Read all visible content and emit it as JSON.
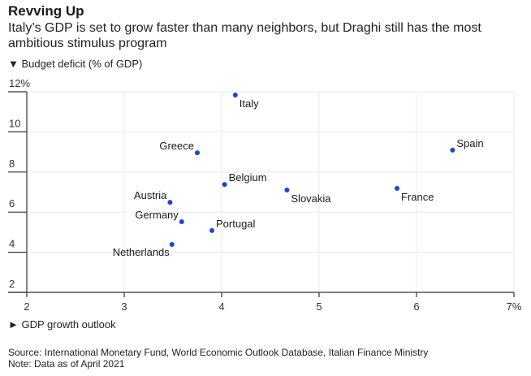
{
  "chart_data": {
    "type": "scatter",
    "title": "Revving Up",
    "subtitle": "Italy’s GDP is set to grow faster than many neighbors, but Draghi still has the most ambitious stimulus program",
    "ylabel": "▼ Budget deficit (% of GDP)",
    "xlabel": "► GDP growth outlook",
    "xlim": [
      2,
      7
    ],
    "ylim": [
      2,
      12
    ],
    "x_ticks": [
      {
        "value": 2,
        "label": "2"
      },
      {
        "value": 3,
        "label": "3"
      },
      {
        "value": 4,
        "label": "4"
      },
      {
        "value": 5,
        "label": "5"
      },
      {
        "value": 6,
        "label": "6"
      },
      {
        "value": 7,
        "label": "7%"
      }
    ],
    "y_ticks": [
      {
        "value": 2,
        "label": "2"
      },
      {
        "value": 4,
        "label": "4"
      },
      {
        "value": 6,
        "label": "6"
      },
      {
        "value": 8,
        "label": "8"
      },
      {
        "value": 10,
        "label": "10"
      },
      {
        "value": 12,
        "label": "12%"
      }
    ],
    "grid": true,
    "point_color": "#1a47d6",
    "points": [
      {
        "label": "Italy",
        "x": 4.14,
        "y": 11.84,
        "anchor": "below-right"
      },
      {
        "label": "Greece",
        "x": 3.75,
        "y": 8.96,
        "anchor": "above-left"
      },
      {
        "label": "Spain",
        "x": 6.37,
        "y": 9.09,
        "anchor": "above-right"
      },
      {
        "label": "Belgium",
        "x": 4.03,
        "y": 7.38,
        "anchor": "above-right"
      },
      {
        "label": "Slovakia",
        "x": 4.67,
        "y": 7.1,
        "anchor": "below-right"
      },
      {
        "label": "France",
        "x": 5.8,
        "y": 7.18,
        "anchor": "below-right"
      },
      {
        "label": "Austria",
        "x": 3.47,
        "y": 6.49,
        "anchor": "above-left"
      },
      {
        "label": "Germany",
        "x": 3.59,
        "y": 5.52,
        "anchor": "above-left"
      },
      {
        "label": "Portugal",
        "x": 3.9,
        "y": 5.08,
        "anchor": "above-right"
      },
      {
        "label": "Netherlands",
        "x": 3.49,
        "y": 4.39,
        "anchor": "below-left"
      }
    ]
  },
  "footer": {
    "source": "Source: International Monetary Fund, World Economic Outlook Database, Italian Finance Ministry",
    "note": "Note: Data as of April 2021"
  }
}
